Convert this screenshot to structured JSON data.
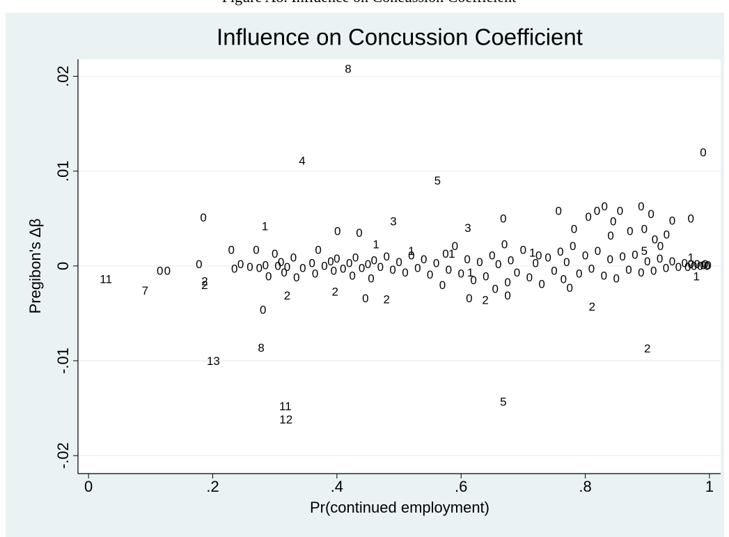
{
  "caption": "Figure A8. Influence on Concussion Coefficient",
  "chart_data": {
    "type": "scatter",
    "title": "Influence on Concussion Coefficient",
    "x_label": "Pr(continued employment)",
    "y_label": "Pregibon's Δβ",
    "color": "#000000",
    "grid": true,
    "xlim": [
      -0.017,
      1.018
    ],
    "ylim": [
      -0.0219,
      0.0218
    ],
    "xticks": [
      0,
      {
        "value": 0.2,
        "label": ".2"
      },
      {
        "value": 0.4,
        "label": ".4"
      },
      {
        "value": 0.6,
        "label": ".6"
      },
      {
        "value": 0.8,
        "label": ".8"
      },
      1
    ],
    "yticks": [
      {
        "value": -0.02,
        "label": "-.02"
      },
      {
        "value": -0.01,
        "label": "-.01"
      },
      0,
      {
        "value": 0.01,
        "label": ".01"
      },
      {
        "value": 0.02,
        "label": ".02"
      }
    ],
    "points": [
      {
        "x": 0.418,
        "y": 0.0207,
        "label": "8"
      },
      {
        "x": 0.344,
        "y": 0.011,
        "label": "4"
      },
      {
        "x": 0.562,
        "y": 0.0089,
        "label": "5"
      },
      {
        "x": 0.99,
        "y": 0.0119,
        "label": "0"
      },
      {
        "x": 0.185,
        "y": 0.005,
        "label": "0"
      },
      {
        "x": 0.284,
        "y": 0.0041,
        "label": "1"
      },
      {
        "x": 0.491,
        "y": 0.0046,
        "label": "3"
      },
      {
        "x": 0.401,
        "y": 0.0036,
        "label": "0"
      },
      {
        "x": 0.436,
        "y": 0.0034,
        "label": "0"
      },
      {
        "x": 0.463,
        "y": 0.0022,
        "label": "1"
      },
      {
        "x": 0.611,
        "y": 0.0039,
        "label": "3"
      },
      {
        "x": 0.668,
        "y": 0.0049,
        "label": "0"
      },
      {
        "x": 0.757,
        "y": 0.0057,
        "label": "0"
      },
      {
        "x": 0.028,
        "y": -0.0015,
        "label": "11"
      },
      {
        "x": 0.091,
        "y": -0.0027,
        "label": "7"
      },
      {
        "x": 0.115,
        "y": -0.0006,
        "label": "0"
      },
      {
        "x": 0.127,
        "y": -0.0006,
        "label": "0"
      },
      {
        "x": 0.178,
        "y": 0.0001,
        "label": "0"
      },
      {
        "x": 0.187,
        "y": -0.0017,
        "label": "2"
      },
      {
        "x": 0.187,
        "y": -0.0021,
        "label": "2"
      },
      {
        "x": 0.281,
        "y": -0.0047,
        "label": "0"
      },
      {
        "x": 0.32,
        "y": -0.0032,
        "label": "2"
      },
      {
        "x": 0.397,
        "y": -0.0028,
        "label": "2"
      },
      {
        "x": 0.446,
        "y": -0.0035,
        "label": "0"
      },
      {
        "x": 0.48,
        "y": -0.0036,
        "label": "2"
      },
      {
        "x": 0.613,
        "y": -0.0035,
        "label": "0"
      },
      {
        "x": 0.639,
        "y": -0.0037,
        "label": "2"
      },
      {
        "x": 0.675,
        "y": -0.0032,
        "label": "0"
      },
      {
        "x": 0.811,
        "y": -0.0044,
        "label": "2"
      },
      {
        "x": 0.278,
        "y": -0.0087,
        "label": "8"
      },
      {
        "x": 0.201,
        "y": -0.0101,
        "label": "13"
      },
      {
        "x": 0.9,
        "y": -0.0088,
        "label": "2"
      },
      {
        "x": 0.317,
        "y": -0.0149,
        "label": "11"
      },
      {
        "x": 0.318,
        "y": -0.0163,
        "label": "12"
      },
      {
        "x": 0.668,
        "y": -0.0144,
        "label": "5"
      },
      {
        "x": 0.979,
        "y": -0.0012,
        "label": "1"
      },
      {
        "x": 0.805,
        "y": 0.0051,
        "label": "0"
      },
      {
        "x": 0.819,
        "y": 0.0057,
        "label": "0"
      },
      {
        "x": 0.831,
        "y": 0.0062,
        "label": "0"
      },
      {
        "x": 0.856,
        "y": 0.0057,
        "label": "0"
      },
      {
        "x": 0.845,
        "y": 0.0046,
        "label": "0"
      },
      {
        "x": 0.89,
        "y": 0.0062,
        "label": "0"
      },
      {
        "x": 0.906,
        "y": 0.0054,
        "label": "0"
      },
      {
        "x": 0.94,
        "y": 0.0047,
        "label": "0"
      },
      {
        "x": 0.97,
        "y": 0.0049,
        "label": "0"
      },
      {
        "x": 0.782,
        "y": 0.0038,
        "label": "0"
      },
      {
        "x": 0.872,
        "y": 0.0036,
        "label": "0"
      },
      {
        "x": 0.895,
        "y": 0.0038,
        "label": "0"
      },
      {
        "x": 0.931,
        "y": 0.0032,
        "label": "0"
      },
      {
        "x": 0.912,
        "y": 0.0027,
        "label": "0"
      },
      {
        "x": 0.921,
        "y": 0.002,
        "label": "0"
      },
      {
        "x": 0.841,
        "y": 0.0031,
        "label": "0"
      },
      {
        "x": 0.895,
        "y": 0.0015,
        "label": "5"
      },
      {
        "x": 0.23,
        "y": 0.0016,
        "label": "0"
      },
      {
        "x": 0.235,
        "y": -0.0004,
        "label": "0"
      },
      {
        "x": 0.245,
        "y": 0.0001,
        "label": "0"
      },
      {
        "x": 0.26,
        "y": -0.0002,
        "label": "0"
      },
      {
        "x": 0.27,
        "y": 0.0016,
        "label": "0"
      },
      {
        "x": 0.275,
        "y": -0.0003,
        "label": "0"
      },
      {
        "x": 0.285,
        "y": 0.0,
        "label": "0"
      },
      {
        "x": 0.29,
        "y": -0.0012,
        "label": "0"
      },
      {
        "x": 0.3,
        "y": 0.0012,
        "label": "0"
      },
      {
        "x": 0.305,
        "y": -0.0001,
        "label": "0"
      },
      {
        "x": 0.31,
        "y": 0.0003,
        "label": "0"
      },
      {
        "x": 0.315,
        "y": -0.0008,
        "label": "0"
      },
      {
        "x": 0.32,
        "y": -0.0002,
        "label": "0"
      },
      {
        "x": 0.33,
        "y": 0.0008,
        "label": "0"
      },
      {
        "x": 0.335,
        "y": -0.0013,
        "label": "0"
      },
      {
        "x": 0.345,
        "y": -0.0003,
        "label": "0"
      },
      {
        "x": 0.36,
        "y": 0.0002,
        "label": "0"
      },
      {
        "x": 0.365,
        "y": -0.0009,
        "label": "0"
      },
      {
        "x": 0.37,
        "y": 0.0016,
        "label": "0"
      },
      {
        "x": 0.38,
        "y": -0.0001,
        "label": "0"
      },
      {
        "x": 0.39,
        "y": 0.0004,
        "label": "0"
      },
      {
        "x": 0.395,
        "y": -0.0006,
        "label": "0"
      },
      {
        "x": 0.4,
        "y": 0.0007,
        "label": "0"
      },
      {
        "x": 0.41,
        "y": -0.0004,
        "label": "0"
      },
      {
        "x": 0.42,
        "y": 0.0002,
        "label": "0"
      },
      {
        "x": 0.425,
        "y": -0.0011,
        "label": "0"
      },
      {
        "x": 0.43,
        "y": 0.0008,
        "label": "0"
      },
      {
        "x": 0.44,
        "y": -0.0003,
        "label": "0"
      },
      {
        "x": 0.45,
        "y": 0.0001,
        "label": "0"
      },
      {
        "x": 0.455,
        "y": -0.0014,
        "label": "0"
      },
      {
        "x": 0.46,
        "y": 0.0005,
        "label": "0"
      },
      {
        "x": 0.47,
        "y": -0.0002,
        "label": "0"
      },
      {
        "x": 0.48,
        "y": 0.0009,
        "label": "0"
      },
      {
        "x": 0.49,
        "y": -0.0005,
        "label": "0"
      },
      {
        "x": 0.5,
        "y": 0.0003,
        "label": "0"
      },
      {
        "x": 0.51,
        "y": -0.0008,
        "label": "0"
      },
      {
        "x": 0.52,
        "y": 0.001,
        "label": "0"
      },
      {
        "x": 0.53,
        "y": -0.0003,
        "label": "0"
      },
      {
        "x": 0.54,
        "y": 0.0006,
        "label": "0"
      },
      {
        "x": 0.55,
        "y": -0.001,
        "label": "0"
      },
      {
        "x": 0.56,
        "y": 0.0002,
        "label": "0"
      },
      {
        "x": 0.57,
        "y": -0.0021,
        "label": "0"
      },
      {
        "x": 0.575,
        "y": 0.0012,
        "label": "0"
      },
      {
        "x": 0.58,
        "y": -0.0005,
        "label": "0"
      },
      {
        "x": 0.59,
        "y": 0.002,
        "label": "0"
      },
      {
        "x": 0.6,
        "y": -0.0009,
        "label": "0"
      },
      {
        "x": 0.61,
        "y": 0.0006,
        "label": "0"
      },
      {
        "x": 0.62,
        "y": -0.0016,
        "label": "0"
      },
      {
        "x": 0.63,
        "y": 0.0003,
        "label": "0"
      },
      {
        "x": 0.64,
        "y": -0.0012,
        "label": "0"
      },
      {
        "x": 0.65,
        "y": 0.001,
        "label": "0"
      },
      {
        "x": 0.655,
        "y": -0.0025,
        "label": "0"
      },
      {
        "x": 0.66,
        "y": 0.0001,
        "label": "0"
      },
      {
        "x": 0.67,
        "y": 0.0022,
        "label": "0"
      },
      {
        "x": 0.675,
        "y": -0.0018,
        "label": "0"
      },
      {
        "x": 0.68,
        "y": 0.0005,
        "label": "0"
      },
      {
        "x": 0.69,
        "y": -0.0008,
        "label": "0"
      },
      {
        "x": 0.7,
        "y": 0.0016,
        "label": "0"
      },
      {
        "x": 0.71,
        "y": -0.0013,
        "label": "0"
      },
      {
        "x": 0.72,
        "y": 0.0002,
        "label": "0"
      },
      {
        "x": 0.725,
        "y": 0.001,
        "label": "0"
      },
      {
        "x": 0.73,
        "y": -0.002,
        "label": "0"
      },
      {
        "x": 0.74,
        "y": 0.0008,
        "label": "0"
      },
      {
        "x": 0.75,
        "y": -0.0006,
        "label": "0"
      },
      {
        "x": 0.76,
        "y": 0.0014,
        "label": "0"
      },
      {
        "x": 0.765,
        "y": -0.0015,
        "label": "0"
      },
      {
        "x": 0.77,
        "y": 0.0003,
        "label": "0"
      },
      {
        "x": 0.775,
        "y": -0.0024,
        "label": "0"
      },
      {
        "x": 0.78,
        "y": 0.002,
        "label": "0"
      },
      {
        "x": 0.79,
        "y": -0.0009,
        "label": "0"
      },
      {
        "x": 0.8,
        "y": 0.001,
        "label": "0"
      },
      {
        "x": 0.81,
        "y": -0.0004,
        "label": "0"
      },
      {
        "x": 0.82,
        "y": 0.0015,
        "label": "0"
      },
      {
        "x": 0.83,
        "y": -0.0011,
        "label": "0"
      },
      {
        "x": 0.84,
        "y": 0.0006,
        "label": "0"
      },
      {
        "x": 0.85,
        "y": -0.0014,
        "label": "0"
      },
      {
        "x": 0.86,
        "y": 0.0009,
        "label": "0"
      },
      {
        "x": 0.87,
        "y": -0.0005,
        "label": "0"
      },
      {
        "x": 0.88,
        "y": 0.0011,
        "label": "0"
      },
      {
        "x": 0.89,
        "y": -0.0008,
        "label": "0"
      },
      {
        "x": 0.9,
        "y": 0.0004,
        "label": "0"
      },
      {
        "x": 0.91,
        "y": -0.0006,
        "label": "0"
      },
      {
        "x": 0.92,
        "y": 0.0007,
        "label": "0"
      },
      {
        "x": 0.93,
        "y": -0.0003,
        "label": "0"
      },
      {
        "x": 0.94,
        "y": 0.0004,
        "label": "0"
      },
      {
        "x": 0.95,
        "y": -0.0002,
        "label": "0"
      },
      {
        "x": 0.96,
        "y": 0.0002,
        "label": "0"
      },
      {
        "x": 0.965,
        "y": -0.0002,
        "label": "0"
      },
      {
        "x": 0.97,
        "y": 0.0001,
        "label": "0"
      },
      {
        "x": 0.975,
        "y": -0.0001,
        "label": "0"
      },
      {
        "x": 0.98,
        "y": 0.0001,
        "label": "0"
      },
      {
        "x": 0.985,
        "y": -0.0001,
        "label": "0"
      },
      {
        "x": 0.99,
        "y": 0.0,
        "label": "0"
      },
      {
        "x": 0.993,
        "y": 0.0001,
        "label": "0"
      },
      {
        "x": 0.996,
        "y": -0.0001,
        "label": "0"
      },
      {
        "x": 0.998,
        "y": 0.0,
        "label": "0"
      },
      {
        "x": 0.52,
        "y": 0.0015,
        "label": "1"
      },
      {
        "x": 0.585,
        "y": 0.0012,
        "label": "1"
      },
      {
        "x": 0.615,
        "y": -0.0008,
        "label": "1"
      },
      {
        "x": 0.715,
        "y": 0.0013,
        "label": "1"
      },
      {
        "x": 0.97,
        "y": 0.0008,
        "label": "1"
      }
    ]
  }
}
